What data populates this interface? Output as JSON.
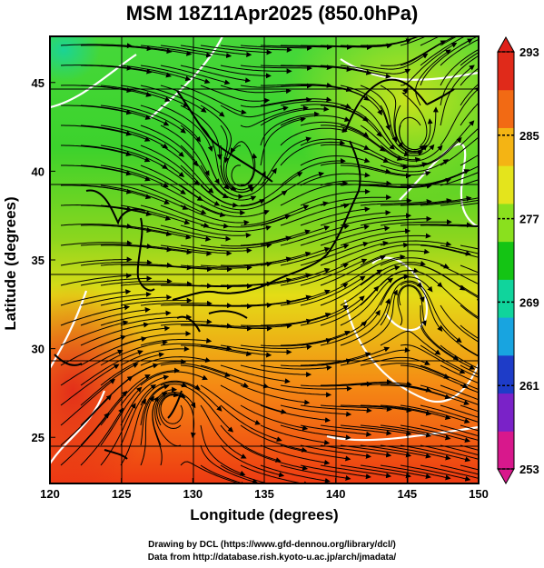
{
  "title": "MSM 18Z11Apr2025 (850.0hPa)",
  "xaxis": {
    "label": "Longitude (degrees)",
    "range": [
      120,
      150
    ],
    "ticks": [
      "120",
      "125",
      "130",
      "135",
      "140",
      "145",
      "150"
    ]
  },
  "yaxis": {
    "label": "Latitude (degrees)",
    "range": [
      22.4,
      47.6
    ],
    "ticks": [
      "25",
      "30",
      "35",
      "40",
      "45"
    ]
  },
  "colorbar": {
    "labels": [
      "293",
      "285",
      "277",
      "269",
      "261",
      "253"
    ],
    "range": [
      253,
      293
    ],
    "colors": [
      "#d8188c",
      "#7a22c8",
      "#1e3cc8",
      "#18a4e0",
      "#10d49c",
      "#14c414",
      "#8ae01e",
      "#e4e41c",
      "#f4b414",
      "#f26a14",
      "#e02a1a"
    ]
  },
  "credits": {
    "line1": "Drawing by DCL (https://www.gfd-dennou.org/library/dcl/)",
    "line2": "Data from http://database.rish.kyoto-u.ac.jp/arch/jmadata/"
  },
  "map_features": {
    "field": "850hPa temperature (shaded) with streamlines",
    "vortices": [
      {
        "name": "cyclone-north",
        "lon": 133.3,
        "lat": 39.3
      },
      {
        "name": "anticyclone-east",
        "lon": 145,
        "lat": 33.5
      },
      {
        "name": "anticyclone-south",
        "lon": 128.5,
        "lat": 27
      },
      {
        "name": "cyclone-northeast",
        "lon": 145.5,
        "lat": 41.5
      }
    ]
  }
}
